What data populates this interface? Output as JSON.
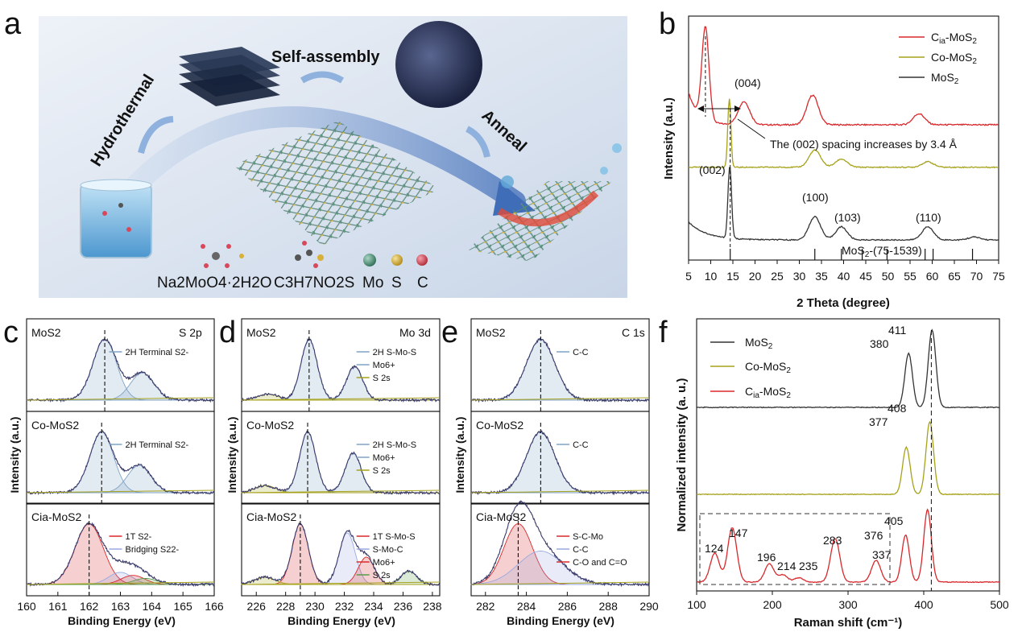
{
  "panels": {
    "a": {
      "label": "a",
      "steps": [
        "Hydrothermal",
        "Self-assembly",
        "Anneal"
      ],
      "reagents": [
        "Na2MoO4·2H2O",
        "C3H7NO2S"
      ],
      "atom_legend": [
        {
          "name": "Mo",
          "color": "#4f8a73"
        },
        {
          "name": "S",
          "color": "#d8b13a"
        },
        {
          "name": "C",
          "color": "#d8485b"
        }
      ]
    },
    "b": {
      "label": "b"
    },
    "c": {
      "label": "c"
    },
    "d": {
      "label": "d"
    },
    "e": {
      "label": "e"
    },
    "f": {
      "label": "f"
    }
  },
  "colors": {
    "red": "#d8282b",
    "olive": "#a6a21a",
    "black": "#333333",
    "hatch": "#7fa3c5"
  },
  "chart_data": [
    {
      "panel": "b",
      "type": "line",
      "xlabel": "2 Theta (degree)",
      "ylabel": "Intensity (a.u.)",
      "xlim": [
        5,
        75
      ],
      "xticks": [
        5,
        10,
        15,
        20,
        25,
        30,
        35,
        40,
        45,
        50,
        55,
        60,
        65,
        70,
        75
      ],
      "legend": [
        "C_ia-MoS2",
        "Co-MoS2",
        "MoS2"
      ],
      "legend_placement": "top-right",
      "series": [
        {
          "name": "Cia-MoS2",
          "color": "#d8282b",
          "peaks": [
            [
              8.8,
              1.0
            ],
            [
              17.5,
              0.25
            ],
            [
              33.0,
              0.32
            ],
            [
              57.0,
              0.12
            ]
          ]
        },
        {
          "name": "Co-MoS2",
          "color": "#a6a21a",
          "peaks": [
            [
              14.2,
              1.0
            ],
            [
              33.5,
              0.25
            ],
            [
              39.5,
              0.12
            ],
            [
              59.0,
              0.08
            ]
          ]
        },
        {
          "name": "MoS2",
          "color": "#333333",
          "peaks": [
            [
              14.3,
              1.0
            ],
            [
              33.5,
              0.32
            ],
            [
              39.5,
              0.18
            ],
            [
              59.0,
              0.18
            ],
            [
              69.5,
              0.04
            ]
          ]
        }
      ],
      "annotations": [
        "(004)",
        "(002)",
        "(100)",
        "(103)",
        "(110)",
        "The (002) spacing increases by 3.4 Å",
        "MoS2-(75-1539)"
      ],
      "reference_lines": [
        14.4,
        33.5,
        39.5,
        44.2,
        49.8,
        58.4,
        60.2,
        69.1
      ]
    },
    {
      "panel": "c",
      "type": "line",
      "xlabel": "Binding Energy (eV)",
      "ylabel": "Intensity (a.u.)",
      "title": "S 2p",
      "xlim": [
        160,
        166
      ],
      "xticks": [
        160,
        161,
        162,
        163,
        164,
        165,
        166
      ],
      "subpanels": [
        {
          "label": "MoS2",
          "legend": [
            "2H Terminal S2-"
          ],
          "peaks": [
            [
              162.5,
              1.0
            ],
            [
              163.7,
              0.45
            ]
          ]
        },
        {
          "label": "Co-MoS2",
          "legend": [
            "2H Terminal S2-"
          ],
          "peaks": [
            [
              162.4,
              1.0
            ],
            [
              163.6,
              0.45
            ]
          ]
        },
        {
          "label": "Cia-MoS2",
          "legend": [
            "1T S2-",
            "Bridging S22-"
          ],
          "peaks": [
            [
              162.0,
              1.0
            ],
            [
              163.0,
              0.2
            ],
            [
              163.4,
              0.15
            ],
            [
              163.8,
              0.1
            ]
          ]
        }
      ]
    },
    {
      "panel": "d",
      "type": "line",
      "xlabel": "Binding Energy (eV)",
      "ylabel": "Intensity (a.u.)",
      "title": "Mo 3d",
      "xlim": [
        225,
        238.5
      ],
      "xticks": [
        226,
        228,
        230,
        232,
        234,
        236,
        238
      ],
      "subpanels": [
        {
          "label": "MoS2",
          "legend": [
            "2H S-Mo-S",
            "Mo6+",
            "S 2s"
          ],
          "peaks": [
            [
              229.6,
              1.0
            ],
            [
              232.7,
              0.55
            ],
            [
              226.8,
              0.1
            ]
          ]
        },
        {
          "label": "Co-MoS2",
          "legend": [
            "2H S-Mo-S",
            "Mo6+",
            "S 2s"
          ],
          "peaks": [
            [
              229.5,
              1.0
            ],
            [
              232.6,
              0.65
            ],
            [
              226.6,
              0.12
            ]
          ]
        },
        {
          "label": "Cia-MoS2",
          "legend": [
            "1T S-Mo-S",
            "S-Mo-C",
            "Mo6+",
            "S 2s"
          ],
          "peaks": [
            [
              229.0,
              1.0
            ],
            [
              232.2,
              0.85
            ],
            [
              233.5,
              0.45
            ],
            [
              236.4,
              0.22
            ],
            [
              226.6,
              0.12
            ]
          ]
        }
      ]
    },
    {
      "panel": "e",
      "type": "line",
      "xlabel": "Binding Energy (eV)",
      "ylabel": "Intensity (a.u.)",
      "title": "C 1s",
      "xlim": [
        281.3,
        290
      ],
      "xticks": [
        282,
        284,
        286,
        288,
        290
      ],
      "subpanels": [
        {
          "label": "MoS2",
          "legend": [
            "C-C"
          ],
          "peaks": [
            [
              284.7,
              1.0
            ]
          ]
        },
        {
          "label": "Co-MoS2",
          "legend": [
            "C-C"
          ],
          "peaks": [
            [
              284.7,
              1.0
            ]
          ]
        },
        {
          "label": "Cia-MoS2",
          "legend": [
            "S-C-Mo",
            "C-C",
            "C-O and C=O"
          ],
          "peaks": [
            [
              283.6,
              1.0
            ],
            [
              284.7,
              0.55
            ]
          ]
        }
      ]
    },
    {
      "panel": "f",
      "type": "line",
      "xlabel": "Raman shift (cm⁻¹)",
      "ylabel": "Normalized intensity (a. u.)",
      "xlim": [
        100,
        500
      ],
      "xticks": [
        100,
        200,
        300,
        400,
        500
      ],
      "legend": [
        "MoS2",
        "Co-MoS2",
        "Cia-MoS2"
      ],
      "legend_placement": "top-left",
      "series": [
        {
          "name": "MoS2",
          "color": "#333333",
          "peaks": [
            [
              380,
              0.7
            ],
            [
              411,
              1.0
            ]
          ]
        },
        {
          "name": "Co-MoS2",
          "color": "#a6a21a",
          "peaks": [
            [
              377,
              0.65
            ],
            [
              408,
              1.0
            ]
          ]
        },
        {
          "name": "Cia-MoS2",
          "color": "#d8282b",
          "peaks": [
            [
              124,
              0.4
            ],
            [
              147,
              0.75
            ],
            [
              196,
              0.25
            ],
            [
              214,
              0.1
            ],
            [
              235,
              0.06
            ],
            [
              283,
              0.6
            ],
            [
              337,
              0.3
            ],
            [
              376,
              0.65
            ],
            [
              405,
              1.0
            ]
          ]
        }
      ],
      "peak_labels": [
        "411",
        "380",
        "408",
        "377",
        "405",
        "376",
        "337",
        "283",
        "235",
        "214",
        "196",
        "147",
        "124"
      ],
      "reference_line": 410
    }
  ]
}
